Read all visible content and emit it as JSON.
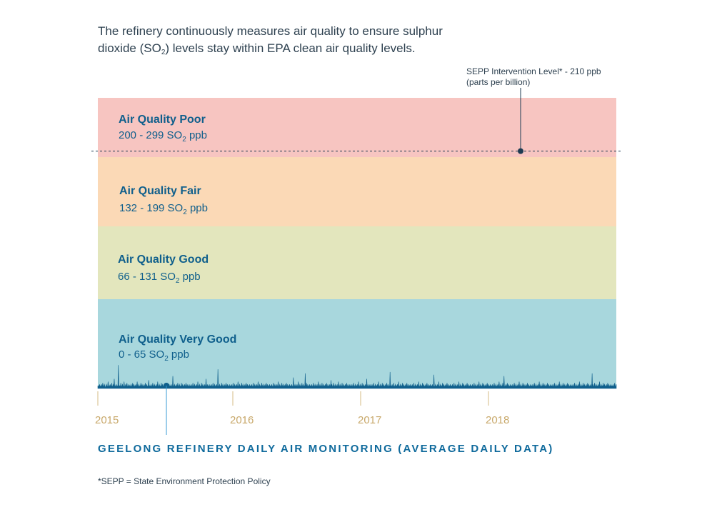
{
  "intro": {
    "part1": "The refinery continuously measures air quality to ensure sulphur dioxide (SO",
    "sub": "2",
    "part2": ") levels stay within EPA clean air quality levels."
  },
  "chart_data": {
    "type": "area",
    "title": "GEELONG REFINERY DAILY AIR MONITORING (AVERAGE DAILY DATA)",
    "y_unit": "SO2 ppb",
    "ylim": [
      0,
      299
    ],
    "x_ticks": [
      "2015",
      "2016",
      "2017",
      "2018"
    ],
    "bands": [
      {
        "name": "Air Quality Poor",
        "range_pre": "200 - 299 SO",
        "range_sub": "2",
        "range_post": " ppb",
        "min": 200,
        "max": 299,
        "color": "#f7c5c1"
      },
      {
        "name": "Air Quality Fair",
        "range_pre": "132 - 199 SO",
        "range_sub": "2",
        "range_post": " ppb",
        "min": 132,
        "max": 199,
        "color": "#fbd9b6"
      },
      {
        "name": "Air Quality Good",
        "range_pre": "66 - 131 SO",
        "range_sub": "2",
        "range_post": " ppb",
        "min": 66,
        "max": 131,
        "color": "#e3e6bd"
      },
      {
        "name": "Air Quality Very Good",
        "range_pre": "0 - 65 SO",
        "range_sub": "2",
        "range_post": " ppb",
        "min": 0,
        "max": 65,
        "color": "#a8d7dd"
      }
    ],
    "intervention": {
      "label1": "SEPP Intervention Level* - 210 ppb",
      "label2": "(parts per billion)",
      "value": 210
    },
    "series": [
      {
        "name": "Daily average SO2",
        "color": "#0f5f8c",
        "values": [
          2,
          1,
          2,
          1,
          3,
          2,
          1,
          2,
          2,
          3,
          1,
          2,
          4,
          2,
          1,
          2,
          3,
          2,
          1,
          1,
          2,
          3,
          2,
          1,
          2,
          5,
          2,
          1,
          2,
          1,
          3,
          2,
          2,
          1,
          4,
          2,
          1,
          2,
          3,
          2,
          7,
          2,
          1,
          2,
          1,
          3,
          2,
          1,
          2,
          2,
          17,
          3,
          1,
          2,
          2,
          1,
          4,
          2,
          1,
          2,
          3,
          2,
          1,
          2,
          5,
          2,
          1,
          2,
          3,
          1,
          2,
          4,
          2,
          1,
          2,
          2,
          3,
          1,
          2,
          1,
          2,
          3,
          2,
          1,
          2,
          4,
          2,
          1,
          3,
          2,
          1,
          2,
          2,
          3,
          1,
          2,
          5,
          2,
          1,
          2,
          3,
          2,
          1,
          2,
          2,
          4,
          1,
          2,
          3,
          2,
          1,
          2,
          2,
          3,
          1,
          2,
          4,
          2,
          1,
          3,
          2,
          1,
          2,
          2,
          6,
          3,
          1,
          2,
          2,
          1,
          3,
          2,
          1,
          2,
          4,
          2,
          1,
          2,
          3,
          2,
          1,
          2,
          2,
          3,
          1,
          2,
          5,
          2,
          1,
          2,
          3,
          2,
          1,
          2,
          2,
          4,
          1,
          2,
          3,
          2,
          1,
          2,
          2,
          3,
          1,
          2,
          4,
          2,
          1,
          3,
          2,
          1,
          2,
          2,
          3,
          1,
          2,
          2,
          1,
          3,
          2,
          1,
          2,
          9,
          2,
          1,
          2,
          3,
          2,
          1,
          2,
          2,
          3,
          1,
          2,
          4,
          2,
          1,
          2,
          3,
          2,
          1,
          2,
          2,
          4,
          1,
          2,
          3,
          2,
          1,
          2,
          2,
          3,
          1,
          2,
          4,
          2,
          1,
          3,
          2,
          1,
          2,
          2,
          3,
          1,
          2,
          2,
          1,
          3,
          2,
          1,
          2,
          4,
          2,
          1,
          2,
          3,
          2,
          1,
          2,
          2,
          3,
          1,
          2,
          5,
          2,
          1,
          2,
          3,
          2,
          1,
          2,
          2,
          4,
          1,
          2,
          3,
          2,
          1,
          2,
          2,
          3,
          1,
          2,
          7,
          2,
          1,
          3,
          2,
          1,
          2,
          2,
          3,
          1,
          2,
          2,
          1,
          3,
          2,
          1,
          2,
          4,
          2,
          1,
          2,
          3,
          2,
          1,
          2,
          2,
          3,
          1,
          2,
          14,
          2,
          1,
          2,
          3,
          2,
          1,
          2,
          2,
          4,
          1,
          2,
          3,
          2,
          1,
          2,
          2,
          3,
          1,
          2,
          4,
          2,
          1,
          3,
          2,
          1,
          2,
          2,
          3,
          1,
          2,
          2,
          1,
          3,
          2,
          1,
          2,
          4,
          2,
          1,
          2,
          3,
          2,
          1,
          2,
          2,
          3,
          1,
          2,
          5,
          2,
          1,
          2,
          3,
          2,
          1,
          2,
          2,
          4,
          1,
          2,
          3,
          2,
          1,
          2,
          2,
          3,
          1,
          2,
          4,
          2,
          1,
          3,
          2,
          1,
          2,
          2,
          3,
          1,
          2,
          2,
          1,
          3,
          2,
          1,
          2,
          4,
          2,
          1,
          2,
          3,
          2,
          1,
          2,
          2,
          3,
          1,
          2,
          5,
          2,
          1,
          2,
          3,
          2,
          1,
          2,
          2,
          4,
          1,
          2,
          3,
          2,
          1,
          2,
          2,
          3,
          1,
          2,
          4,
          2,
          1,
          3,
          2,
          1,
          2,
          2,
          3,
          1,
          2,
          2,
          1,
          3,
          2,
          1,
          2,
          4,
          2,
          1,
          2,
          3,
          2,
          1,
          2,
          2,
          3,
          1,
          2,
          5,
          2,
          1,
          2,
          3,
          2,
          1,
          2,
          2,
          4,
          1,
          2,
          3,
          2,
          1,
          2,
          2,
          3,
          1,
          2,
          4,
          2,
          1,
          3,
          2,
          1,
          2,
          2,
          3,
          1,
          2,
          2,
          1,
          3,
          2,
          1,
          2,
          8,
          2,
          1,
          2,
          3,
          2,
          1,
          2,
          2,
          3,
          1,
          2,
          5,
          2,
          1,
          2,
          3,
          2,
          1,
          2,
          2,
          4,
          1,
          2,
          3,
          2,
          1,
          2,
          2,
          11,
          1,
          2,
          4,
          2,
          1,
          3,
          2,
          1,
          2,
          2,
          3,
          1,
          2,
          2,
          1,
          3,
          2,
          1,
          2,
          4,
          2,
          1,
          2,
          3,
          2,
          1,
          2,
          2,
          3,
          1,
          2,
          5,
          2,
          1,
          2,
          3,
          2,
          1,
          2,
          2,
          4,
          1,
          2,
          3,
          2,
          1,
          2,
          2,
          3,
          1,
          2,
          4,
          2,
          1,
          3,
          2,
          1,
          2,
          2,
          3,
          1,
          2,
          6,
          1,
          3,
          2,
          1,
          2,
          4,
          2,
          1,
          2,
          3,
          2,
          1,
          2,
          2,
          3,
          1,
          2,
          5,
          2,
          1,
          2,
          3,
          2,
          1,
          2,
          2,
          4,
          1,
          2,
          3,
          2,
          1,
          2,
          2,
          3,
          1,
          2,
          4,
          2,
          1,
          3,
          2,
          1,
          2,
          2,
          3,
          1,
          2,
          2,
          1,
          3,
          2,
          1,
          2,
          4,
          2,
          1,
          2,
          3,
          2,
          1,
          2,
          2,
          3,
          1,
          2,
          5,
          2,
          1,
          2,
          3,
          2,
          1,
          2,
          2,
          4,
          1,
          2,
          3,
          2,
          1,
          2,
          2,
          3,
          1,
          2,
          7,
          2,
          1,
          3,
          2,
          1,
          2,
          2,
          3,
          1,
          2,
          2,
          1,
          3,
          2,
          1,
          2,
          4,
          2,
          1,
          2,
          3,
          2,
          1,
          2,
          2,
          3,
          1,
          2,
          5,
          2,
          1,
          2,
          3,
          2,
          1,
          2,
          2,
          4,
          1,
          2,
          3,
          2,
          1,
          2,
          2,
          3,
          1,
          2,
          4,
          2,
          1,
          3,
          2,
          1,
          2,
          2,
          12,
          1,
          2,
          2,
          1,
          3,
          2,
          1,
          2,
          4,
          2,
          1,
          2,
          3,
          2,
          1,
          2,
          2,
          3,
          1,
          2,
          5,
          2,
          1,
          2,
          3,
          2,
          1,
          2,
          2,
          4,
          1,
          2,
          3,
          2,
          1,
          2,
          2,
          3,
          1,
          2,
          4,
          2,
          1,
          3,
          2,
          1,
          2,
          2,
          3,
          1,
          2,
          2,
          1,
          3,
          2,
          1,
          2,
          4,
          2,
          1,
          2,
          3,
          2,
          1,
          2,
          2,
          3,
          1,
          2,
          5,
          2,
          1,
          2,
          3,
          2,
          1,
          2,
          2,
          4,
          1,
          2,
          3,
          2,
          1,
          2,
          2,
          3,
          1,
          2,
          4,
          2,
          1,
          3,
          2,
          1,
          2,
          2,
          3,
          1,
          2,
          2,
          1,
          3,
          2,
          1,
          2,
          10,
          2,
          1,
          2,
          3,
          2,
          1,
          2,
          2,
          3,
          1,
          2,
          5,
          2,
          1,
          2,
          3,
          2,
          1,
          2,
          2,
          4,
          1,
          2,
          3,
          2,
          1,
          2,
          2,
          3,
          1,
          2,
          4,
          2,
          1,
          3,
          2,
          1,
          2,
          2,
          3,
          1,
          2,
          2,
          1,
          3,
          2,
          1,
          2,
          4,
          2,
          1,
          2,
          3,
          2,
          1,
          2,
          2,
          3,
          1,
          2,
          5,
          2,
          1,
          2,
          3,
          2,
          1,
          2,
          2,
          4,
          1,
          2,
          3,
          2,
          1,
          2,
          2,
          3,
          1,
          2,
          4,
          2,
          1,
          3,
          2,
          1,
          2,
          2,
          3,
          1,
          2,
          2,
          1,
          3,
          2,
          1,
          2,
          4,
          2,
          1,
          2,
          3,
          2,
          1,
          2,
          2,
          3,
          1,
          2,
          5,
          2,
          1,
          2,
          3,
          2,
          1,
          2,
          2,
          4,
          1,
          2,
          3,
          2,
          1,
          2,
          2,
          3,
          1,
          2,
          4,
          2,
          1,
          3,
          2,
          1,
          2,
          2,
          3,
          1,
          2,
          2,
          1,
          3,
          2,
          1,
          2,
          4,
          2,
          1,
          2,
          3,
          2,
          1,
          2,
          2,
          3,
          1,
          2,
          5,
          2,
          1,
          2,
          3,
          2,
          1,
          2,
          2,
          4,
          1,
          2,
          9,
          2,
          1,
          2,
          2,
          3,
          1,
          2,
          4,
          2,
          1,
          3,
          2,
          1,
          2,
          2,
          3,
          1,
          2,
          2,
          1,
          3,
          2,
          1,
          2,
          4,
          2,
          1,
          2,
          3,
          2,
          1,
          2,
          2,
          3,
          1,
          2,
          5,
          2,
          1,
          2,
          3,
          2,
          1,
          2,
          2,
          4,
          1,
          2,
          3,
          2,
          1,
          2,
          2,
          3,
          1,
          2,
          4,
          2,
          1,
          3,
          2,
          1,
          2,
          2,
          3,
          1,
          2,
          2,
          1,
          3,
          2,
          1,
          2,
          4,
          2,
          1,
          2,
          3,
          2,
          1,
          2,
          2,
          3,
          1,
          2,
          5,
          2,
          1,
          2,
          3,
          2,
          1,
          2,
          2,
          4,
          1,
          2,
          3,
          2,
          1,
          2,
          2,
          3,
          1,
          2,
          4,
          2,
          1,
          3,
          2,
          1,
          2,
          2,
          3,
          1,
          2,
          2,
          1,
          3,
          2,
          1,
          2,
          4,
          2,
          1,
          2,
          3,
          2,
          1,
          2,
          2,
          3,
          1,
          2,
          5,
          2,
          1,
          2,
          3,
          2,
          1,
          2,
          2,
          4,
          1,
          2,
          3,
          2,
          1,
          2,
          2,
          3,
          1,
          2,
          4,
          2,
          1,
          3,
          2,
          1,
          2,
          2,
          3,
          1,
          2,
          2,
          1,
          3,
          2,
          1,
          2,
          4,
          2,
          1,
          2,
          3,
          2,
          1,
          2,
          2,
          3,
          1,
          2,
          5,
          2,
          1,
          2,
          3,
          2,
          1,
          2,
          2,
          4,
          1,
          2,
          3,
          2,
          1,
          2,
          2,
          3,
          1,
          2,
          4,
          2,
          1,
          3,
          2,
          1,
          2,
          2,
          3,
          1,
          2,
          11,
          1,
          3,
          2,
          1,
          2,
          4,
          2,
          1,
          2,
          3,
          2,
          1,
          2,
          2,
          3,
          1,
          2,
          5,
          2,
          1,
          2,
          3,
          2,
          1,
          2,
          2,
          4,
          1,
          2,
          3,
          2,
          1,
          2,
          2,
          3,
          1,
          2,
          4,
          2,
          1,
          3,
          2,
          1,
          2,
          2,
          3,
          1,
          2,
          2,
          1,
          3,
          2,
          1,
          2,
          4,
          2,
          1,
          2,
          3
        ]
      }
    ],
    "marker_label": ""
  },
  "footnote": "*SEPP = State Environment Protection Policy"
}
